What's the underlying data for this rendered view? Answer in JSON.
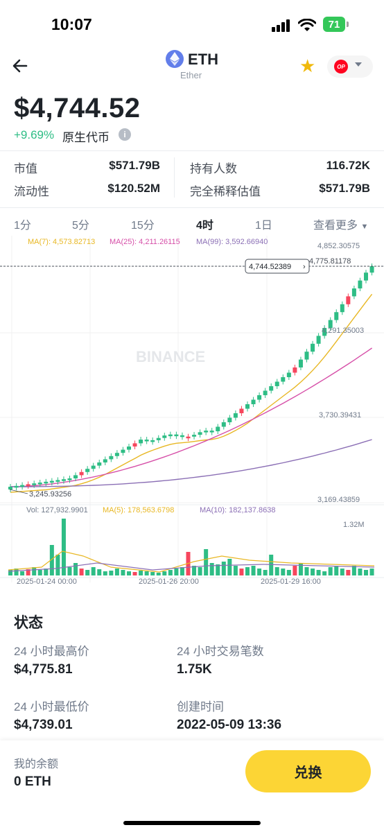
{
  "status_bar": {
    "time": "10:07",
    "battery": "71"
  },
  "header": {
    "symbol": "ETH",
    "name": "Ether",
    "network_badge": "OP"
  },
  "price": {
    "value": "$4,744.52",
    "change": "+9.69%",
    "type_label": "原生代币",
    "info": "i"
  },
  "stats": [
    {
      "label": "市值",
      "value": "$571.79B"
    },
    {
      "label": "持有人数",
      "value": "116.72K"
    },
    {
      "label": "流动性",
      "value": "$120.52M"
    },
    {
      "label": "完全稀释估值",
      "value": "$571.79B"
    }
  ],
  "intervals": {
    "items": [
      "1分",
      "5分",
      "15分",
      "4时",
      "1日"
    ],
    "active": "4时",
    "more": "查看更多"
  },
  "chart": {
    "ma_labels": [
      "MA(7): 4,573.82713",
      "MA(25): 4,211.26115",
      "MA(99): 3,592.66940"
    ],
    "price_axis": [
      "4,852.30575",
      "4,291.35003",
      "3,730.39431",
      "3,169.43859"
    ],
    "current_price_tag": "4,744.52389",
    "high_tag": "4,775.81178",
    "low_tag": "3,245.93256",
    "watermark": "BINANCE",
    "vol_labels": [
      "Vol: 127,932.9901",
      "MA(5): 178,563.6798",
      "MA(10): 182,137.8638"
    ],
    "vol_axis": "1.32M",
    "time_axis": [
      "2025-01-24 00:00",
      "2025-01-26 20:00",
      "2025-01-29 16:00"
    ],
    "colors": {
      "up": "#2ebd85",
      "down": "#f6465d",
      "ma7": "#e8b723",
      "ma25": "#d64fa8",
      "ma99": "#8b6fb5"
    }
  },
  "status_section": {
    "title": "状态",
    "items": [
      {
        "label": "24 小时最高价",
        "value": "$4,775.81"
      },
      {
        "label": "24 小时交易笔数",
        "value": "1.75K"
      },
      {
        "label": "24 小时最低价",
        "value": "$4,739.01"
      },
      {
        "label": "创建时间",
        "value": "2022-05-09 13:36"
      }
    ]
  },
  "bottom": {
    "balance_label": "我的余额",
    "balance_value": "0 ETH",
    "swap_label": "兑换"
  }
}
